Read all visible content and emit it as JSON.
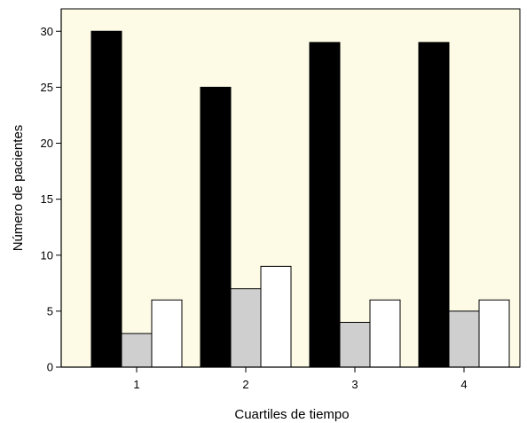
{
  "chart_data": {
    "type": "bar",
    "title": "",
    "xlabel": "Cuartiles de tiempo",
    "ylabel": "Número de pacientes",
    "categories": [
      "1",
      "2",
      "3",
      "4"
    ],
    "ylim": [
      0,
      32
    ],
    "yticks": [
      0,
      5,
      10,
      15,
      20,
      25,
      30
    ],
    "grid": false,
    "legend": "none",
    "plot_background": "#fdfbe6",
    "series": [
      {
        "values": [
          30,
          25,
          29,
          29
        ],
        "color": "#000000"
      },
      {
        "values": [
          3,
          7,
          4,
          5
        ],
        "color": "#cfcfcf"
      },
      {
        "values": [
          6,
          9,
          6,
          6
        ],
        "color": "#ffffff"
      }
    ]
  }
}
